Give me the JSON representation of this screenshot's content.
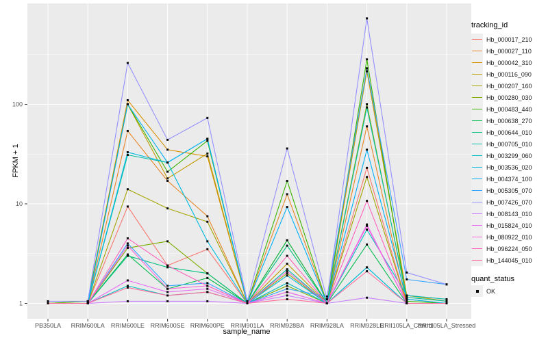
{
  "chart_data": {
    "type": "line",
    "title": "",
    "xlabel": "sample_name",
    "ylabel": "FPKM + 1",
    "y_scale": "log10",
    "y_ticks": [
      1,
      10,
      100
    ],
    "y_minor_ticks": [
      3.162,
      31.62,
      316.2
    ],
    "ylim": [
      0.7,
      1000
    ],
    "grid": "white major+minor on grey panel",
    "legend_position": "right",
    "legend_title": "tracking_id",
    "quant_legend": {
      "title": "quant_status",
      "items": [
        "OK"
      ]
    },
    "marker": "small black square (quant_status OK)",
    "categories": [
      "PB350LA",
      "RRIM600LA",
      "RRIM600LE",
      "RRIM600SE",
      "RRIM600PE",
      "RRIM901LA",
      "RRIM928BA",
      "RRIM928LA",
      "RRIM928LE",
      "RRII105LA_Control",
      "RRII105LA_Stressed"
    ],
    "series": [
      {
        "name": "Hb_000017_210",
        "color": "#F8766D",
        "values": [
          1,
          1,
          9.4,
          2.4,
          3.5,
          1,
          1.3,
          1,
          23,
          1,
          1
        ]
      },
      {
        "name": "Hb_000027_110",
        "color": "#E88526",
        "values": [
          1,
          1,
          54,
          17,
          7.5,
          1,
          12.5,
          1,
          60,
          1,
          1
        ]
      },
      {
        "name": "Hb_000042_310",
        "color": "#D89000",
        "values": [
          1,
          1.05,
          110,
          35,
          30,
          1,
          4.3,
          1,
          230,
          1.2,
          1.1
        ]
      },
      {
        "name": "Hb_000116_090",
        "color": "#C09B00",
        "values": [
          1,
          1,
          100,
          18,
          32,
          1,
          2.5,
          1,
          215,
          1.2,
          1.05
        ]
      },
      {
        "name": "Hb_000207_160",
        "color": "#A3A500",
        "values": [
          1,
          1,
          14,
          9,
          6.6,
          1,
          2,
          1,
          18.6,
          1,
          1
        ]
      },
      {
        "name": "Hb_000280_030",
        "color": "#7CAE00",
        "values": [
          1,
          1,
          3.6,
          4.2,
          2,
          1,
          1.5,
          1,
          100,
          1.1,
          1
        ]
      },
      {
        "name": "Hb_000483_440",
        "color": "#39B600",
        "values": [
          1,
          1.05,
          100,
          21,
          43,
          1,
          17,
          1,
          283,
          1.05,
          1
        ]
      },
      {
        "name": "Hb_000638_270",
        "color": "#00BB4E",
        "values": [
          1,
          1,
          3.1,
          1.4,
          1.8,
          1,
          4.3,
          1,
          3.9,
          1,
          1
        ]
      },
      {
        "name": "Hb_000644_010",
        "color": "#00BF7D",
        "values": [
          1,
          1,
          3,
          2.3,
          2,
          1,
          3.8,
          1,
          2.3,
          1,
          1
        ]
      },
      {
        "name": "Hb_000705_010",
        "color": "#00C1A3",
        "values": [
          1,
          1,
          31,
          26,
          45,
          1,
          2.2,
          1,
          93,
          1.15,
          1.05
        ]
      },
      {
        "name": "Hb_003299_060",
        "color": "#00BFC4",
        "values": [
          1,
          1,
          1.5,
          1.2,
          1.3,
          1,
          1.6,
          1,
          5.5,
          1.2,
          1.1
        ]
      },
      {
        "name": "Hb_003536_020",
        "color": "#00BAE0",
        "values": [
          1,
          1,
          33,
          26,
          4.2,
          1,
          1.9,
          1,
          2.3,
          1,
          1
        ]
      },
      {
        "name": "Hb_004374_100",
        "color": "#00B0F6",
        "values": [
          1,
          1,
          100,
          26,
          45,
          1,
          9.3,
          1,
          35,
          1.1,
          1
        ]
      },
      {
        "name": "Hb_005305_070",
        "color": "#35A2FF",
        "values": [
          1,
          1,
          4,
          1.5,
          1.6,
          1,
          1.4,
          1.17,
          230,
          1.74,
          1.55
        ]
      },
      {
        "name": "Hb_007426_070",
        "color": "#9590FF",
        "values": [
          1.05,
          1.05,
          260,
          44,
          73,
          1.05,
          36,
          1.1,
          730,
          2.04,
          1.55
        ]
      },
      {
        "name": "Hb_008143_010",
        "color": "#C77CFF",
        "values": [
          1,
          1,
          1.05,
          1.05,
          1.05,
          1,
          1.2,
          1,
          1.14,
          1,
          1
        ]
      },
      {
        "name": "Hb_015824_010",
        "color": "#E76BF3",
        "values": [
          1,
          1,
          1.7,
          1.3,
          1.4,
          1,
          1.3,
          1,
          6.2,
          1,
          1
        ]
      },
      {
        "name": "Hb_080922_010",
        "color": "#FA62DB",
        "values": [
          1,
          1,
          3.8,
          1.4,
          1.5,
          1,
          2.1,
          1,
          6,
          1,
          1
        ]
      },
      {
        "name": "Hb_096224_050",
        "color": "#FF62BC",
        "values": [
          1,
          1,
          4.5,
          2.4,
          1.5,
          1,
          3,
          1,
          10.7,
          1,
          1
        ]
      },
      {
        "name": "Hb_144045_010",
        "color": "#FF6A98",
        "values": [
          1,
          1,
          1.44,
          1.2,
          1.3,
          1,
          1.1,
          1,
          2.1,
          1,
          1
        ]
      }
    ]
  },
  "colors": {
    "panel_bg": "#EBEBEB",
    "grid": "#FFFFFF",
    "marker": "#0A0A0A",
    "tick_text": "#4D4D4D",
    "tick_mark": "#333333",
    "legend_key_bg": "#EFEFEF"
  }
}
